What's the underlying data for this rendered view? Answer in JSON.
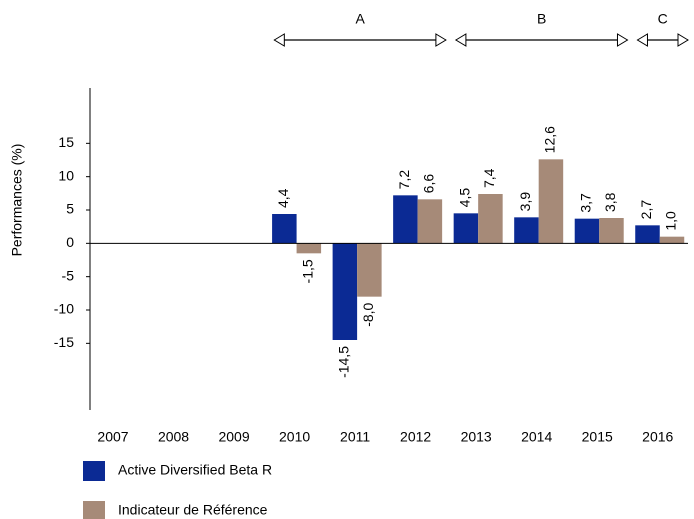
{
  "chart_data": {
    "type": "bar",
    "y_label": "Performances (%)",
    "categories": [
      "2007",
      "2008",
      "2009",
      "2010",
      "2011",
      "2012",
      "2013",
      "2014",
      "2015",
      "2016"
    ],
    "series": [
      {
        "name": "Active Diversified Beta  R",
        "color": "#0b2a94",
        "values": [
          null,
          null,
          null,
          4.4,
          -14.5,
          7.2,
          4.5,
          3.9,
          3.7,
          2.7
        ],
        "value_labels": [
          null,
          null,
          null,
          "4,4",
          "-14,5",
          "7,2",
          "4,5",
          "3,9",
          "3,7",
          "2,7"
        ]
      },
      {
        "name": "Indicateur de Référence",
        "color": "#a68a78",
        "values": [
          null,
          null,
          null,
          -1.5,
          -8.0,
          6.6,
          7.4,
          12.6,
          3.8,
          1.0
        ],
        "value_labels": [
          null,
          null,
          null,
          "-1,5",
          "-8,0",
          "6,6",
          "7,4",
          "12,6",
          "3,8",
          "1,0"
        ]
      }
    ],
    "ylim": [
      -25,
      23.3
    ],
    "yticks": [
      -15,
      -10,
      -5,
      0,
      5,
      10,
      15
    ],
    "periods": [
      {
        "label": "A",
        "span": [
          "2010",
          "2012"
        ]
      },
      {
        "label": "B",
        "span": [
          "2013",
          "2015"
        ]
      },
      {
        "label": "C",
        "span": [
          "2016",
          "2016"
        ]
      }
    ]
  }
}
